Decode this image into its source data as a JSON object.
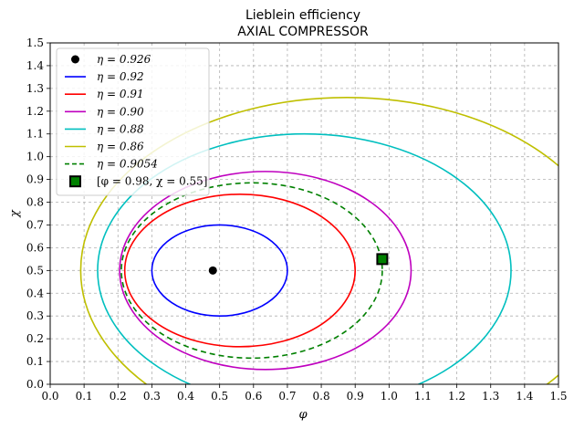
{
  "chart_data": {
    "type": "line",
    "title": "Lieblein efficiency",
    "subtitle": "AXIAL COMPRESSOR",
    "xlabel": "φ",
    "ylabel": "χ",
    "xlim": [
      0.0,
      1.5
    ],
    "ylim": [
      0.0,
      1.5
    ],
    "x_ticks": [
      "0.0",
      "0.1",
      "0.2",
      "0.3",
      "0.4",
      "0.5",
      "0.6",
      "0.7",
      "0.8",
      "0.9",
      "1.0",
      "1.1",
      "1.2",
      "1.3",
      "1.4",
      "1.5"
    ],
    "y_ticks": [
      "0.0",
      "0.1",
      "0.2",
      "0.3",
      "0.4",
      "0.5",
      "0.6",
      "0.7",
      "0.8",
      "0.9",
      "1.0",
      "1.1",
      "1.2",
      "1.3",
      "1.4",
      "1.5"
    ],
    "grid": true,
    "legend_position": "top-left",
    "optimum": {
      "label": "η = 0.926",
      "x": 0.48,
      "y": 0.5,
      "color": "#000000"
    },
    "series": [
      {
        "name": "η = 0.92",
        "color": "#0000ff",
        "dashed": false,
        "center": [
          0.5,
          0.5
        ],
        "radii": [
          0.2,
          0.2
        ]
      },
      {
        "name": "η = 0.91",
        "color": "#ff0000",
        "dashed": false,
        "center": [
          0.56,
          0.5
        ],
        "radii": [
          0.34,
          0.335
        ]
      },
      {
        "name": "η = 0.90",
        "color": "#bf00bf",
        "dashed": false,
        "center": [
          0.635,
          0.5
        ],
        "radii": [
          0.43,
          0.435
        ]
      },
      {
        "name": "η = 0.88",
        "color": "#00bfbf",
        "dashed": false,
        "center": [
          0.75,
          0.5
        ],
        "radii": [
          0.61,
          0.6
        ]
      },
      {
        "name": "η = 0.86",
        "color": "#bfbf00",
        "dashed": false,
        "center": [
          0.875,
          0.5
        ],
        "radii": [
          0.785,
          0.76
        ]
      },
      {
        "name": "η = 0.9054",
        "color": "#008000",
        "dashed": true,
        "center": [
          0.595,
          0.5
        ],
        "radii": [
          0.385,
          0.385
        ]
      }
    ],
    "design_point": {
      "label": "[φ = 0.98, χ = 0.55]",
      "x": 0.98,
      "y": 0.55,
      "fill": "#008000",
      "edge": "#000000"
    }
  }
}
